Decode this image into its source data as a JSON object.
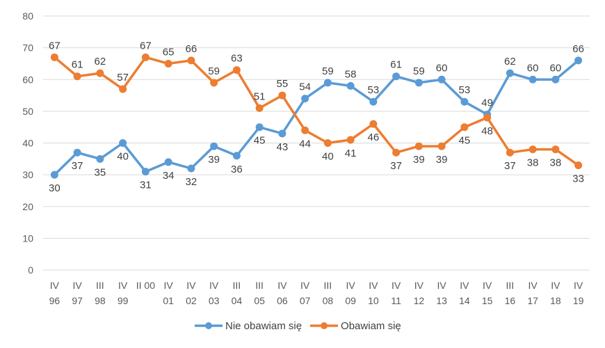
{
  "chart_data": {
    "type": "line",
    "categories": [
      [
        "IV",
        "96"
      ],
      [
        "IV",
        "97"
      ],
      [
        "III",
        "98"
      ],
      [
        "IV",
        "99"
      ],
      [
        "II 00",
        ""
      ],
      [
        "IV",
        "01"
      ],
      [
        "IV",
        "02"
      ],
      [
        "IV",
        "03"
      ],
      [
        "III",
        "04"
      ],
      [
        "III",
        "05"
      ],
      [
        "IV",
        "06"
      ],
      [
        "IV",
        "07"
      ],
      [
        "III",
        "08"
      ],
      [
        "IV",
        "09"
      ],
      [
        "IV",
        "10"
      ],
      [
        "IV",
        "11"
      ],
      [
        "IV",
        "12"
      ],
      [
        "IV",
        "13"
      ],
      [
        "IV",
        "14"
      ],
      [
        "IV",
        "15"
      ],
      [
        "III",
        "16"
      ],
      [
        "IV",
        "17"
      ],
      [
        "IV",
        "18"
      ],
      [
        "IV",
        "19"
      ]
    ],
    "series": [
      {
        "name": "Nie obawiam się",
        "color": "#5B9BD5",
        "values": [
          30,
          37,
          35,
          40,
          31,
          34,
          32,
          39,
          36,
          45,
          43,
          54,
          59,
          58,
          53,
          61,
          59,
          60,
          53,
          49,
          62,
          60,
          60,
          66
        ]
      },
      {
        "name": "Obawiam się",
        "color": "#ED7D31",
        "values": [
          67,
          61,
          62,
          57,
          67,
          65,
          66,
          59,
          63,
          51,
          55,
          44,
          40,
          41,
          46,
          37,
          39,
          39,
          45,
          48,
          37,
          38,
          38,
          33
        ]
      }
    ],
    "ylim": [
      0,
      80
    ],
    "yticks": [
      0,
      10,
      20,
      30,
      40,
      50,
      60,
      70,
      80
    ],
    "grid": true,
    "legend": "bottom"
  }
}
